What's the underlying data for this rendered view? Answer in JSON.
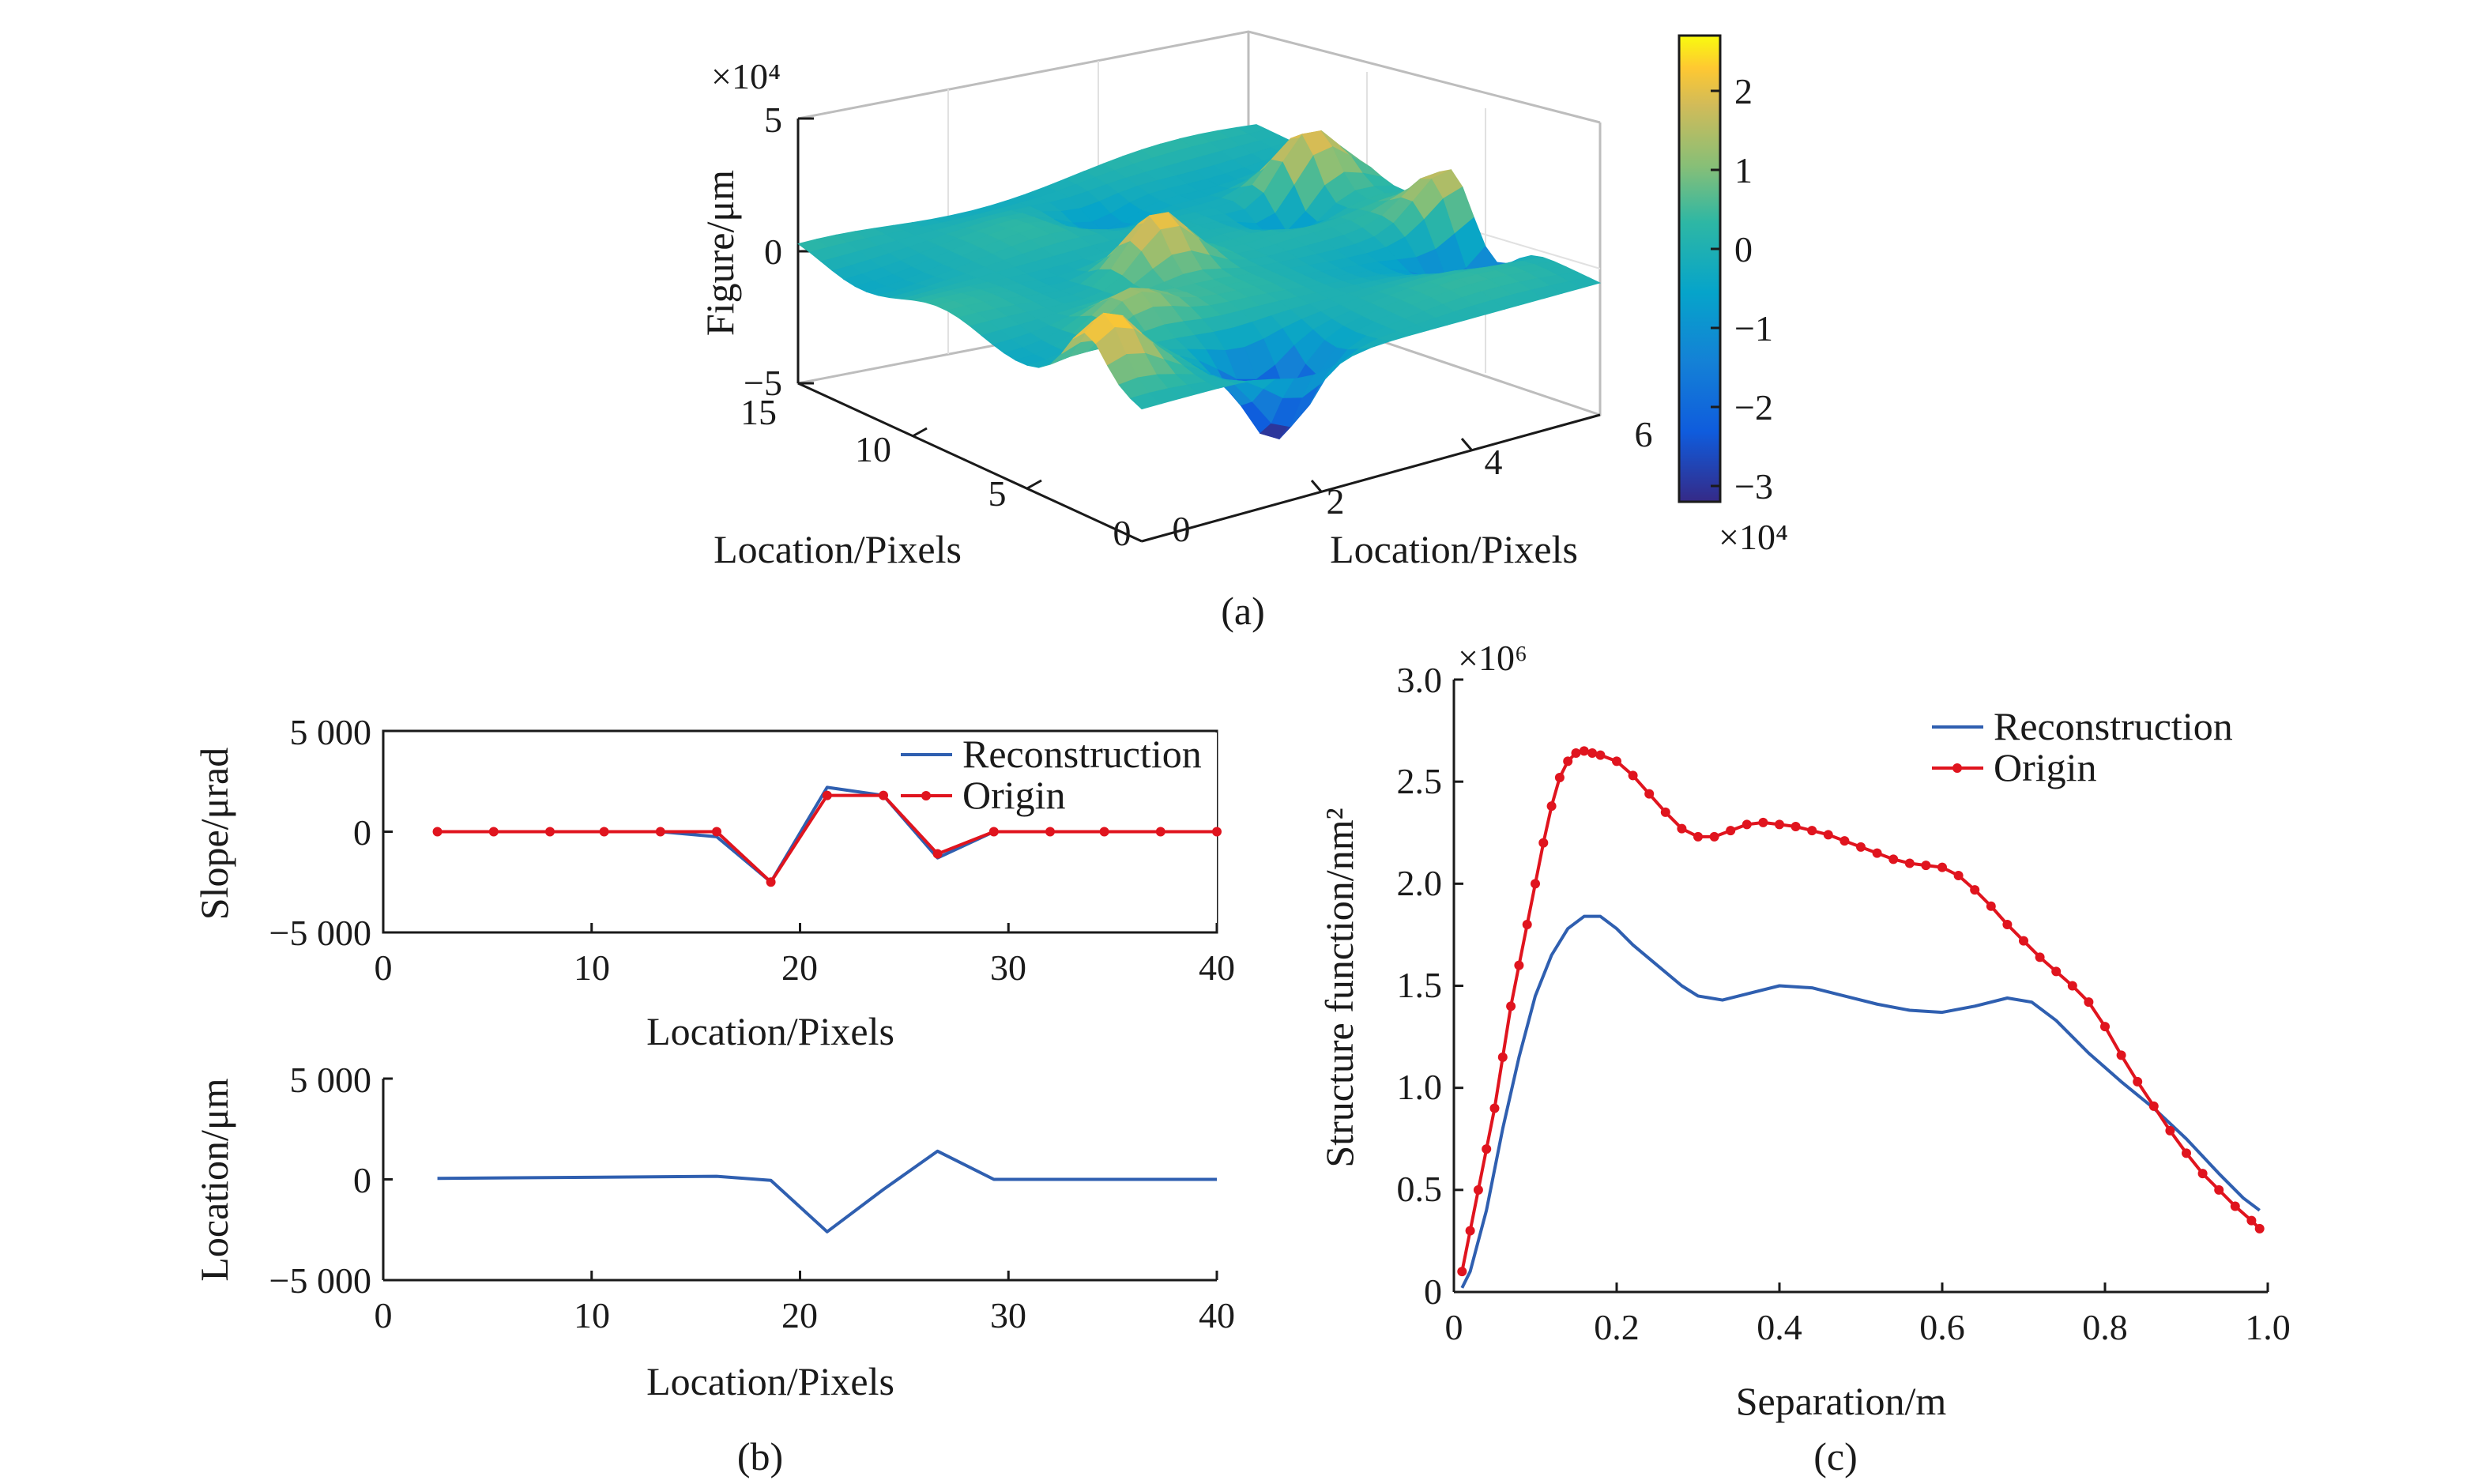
{
  "colors": {
    "reconstruction": "#2f5fb0",
    "origin": "#e0141e",
    "axis": "#1a1a1a",
    "grid": "#d9d9d9"
  },
  "chart_data": [
    {
      "id": "a",
      "caption": "(a)",
      "type": "surface3d",
      "colormap": "parula",
      "xlabel": "Location/Pixels",
      "ylabel": "Location/Pixels",
      "zlabel": "Figure/μm",
      "x_ticks": [
        "0",
        "5",
        "10",
        "15"
      ],
      "y_ticks": [
        "0",
        "2",
        "4",
        "6"
      ],
      "z_ticks": [
        "5",
        "0",
        "−5"
      ],
      "z_exponent": "×10⁴",
      "xlim": [
        0,
        15
      ],
      "ylim": [
        0,
        6
      ],
      "zlim": [
        -5,
        5
      ],
      "colorbar": {
        "ticks": [
          "2",
          "1",
          "0",
          "−1",
          "−2",
          "−3"
        ],
        "range": [
          -3.2,
          2.7
        ],
        "exponent": "×10⁴"
      },
      "peaks": [
        {
          "x": 2.5,
          "y": 0.3,
          "z": 2.2
        },
        {
          "x": 8.0,
          "y": 2.6,
          "z": 2.5
        },
        {
          "x": 10.5,
          "y": 5.3,
          "z": 2.4
        },
        {
          "x": 6.5,
          "y": 5.9,
          "z": 1.8
        },
        {
          "x": 5.2,
          "y": 1.4,
          "z": 1.2
        }
      ],
      "valleys": [
        {
          "x": 1.5,
          "y": 2.2,
          "z": -3.2
        },
        {
          "x": 4.5,
          "y": 5.6,
          "z": -1.8
        },
        {
          "x": 9.5,
          "y": 4.8,
          "z": -1.5
        },
        {
          "x": 12.5,
          "y": 3.2,
          "z": -1.0
        }
      ]
    },
    {
      "id": "b-top",
      "type": "line",
      "xlabel": "Location/Pixels",
      "ylabel": "Slope/μrad",
      "xlim": [
        0,
        40
      ],
      "ylim": [
        -5000,
        5000
      ],
      "x_ticks": [
        "0",
        "10",
        "20",
        "30",
        "40"
      ],
      "y_ticks": [
        "5 000",
        "0",
        "−5 000"
      ],
      "legend": {
        "placement": "top-right"
      },
      "x": [
        2.6,
        5.3,
        8.0,
        10.6,
        13.3,
        16.0,
        18.6,
        21.3,
        24.0,
        26.6,
        29.3,
        32.0,
        34.6,
        37.3,
        40.0
      ],
      "series": [
        {
          "name": "Reconstruction",
          "marker": false,
          "values": [
            0,
            0,
            0,
            0,
            0,
            -250,
            -2500,
            2200,
            1800,
            -1300,
            0,
            0,
            0,
            0,
            0
          ]
        },
        {
          "name": "Origin",
          "marker": true,
          "values": [
            0,
            0,
            0,
            0,
            0,
            0,
            -2500,
            1800,
            1800,
            -1100,
            0,
            0,
            0,
            0,
            0
          ]
        }
      ]
    },
    {
      "id": "b-bottom",
      "caption": "(b)",
      "type": "line",
      "xlabel": "Location/Pixels",
      "ylabel": "Location/μm",
      "xlim": [
        0,
        40
      ],
      "ylim": [
        -5000,
        5000
      ],
      "x_ticks": [
        "0",
        "10",
        "20",
        "30",
        "40"
      ],
      "y_ticks": [
        "5 000",
        "0",
        "−5 000"
      ],
      "x": [
        2.6,
        16.0,
        18.6,
        21.3,
        24.0,
        26.6,
        29.3,
        40.0
      ],
      "series": [
        {
          "name": "Reconstruction",
          "marker": false,
          "values": [
            50,
            150,
            -50,
            -2600,
            -500,
            1400,
            0,
            0
          ]
        }
      ]
    },
    {
      "id": "c",
      "caption": "(c)",
      "type": "line",
      "xlabel": "Separation/m",
      "ylabel": "Structure function/nm²",
      "xlim": [
        0,
        1.0
      ],
      "ylim": [
        0,
        3.0
      ],
      "y_exponent": "×10⁶",
      "x_ticks": [
        "0",
        "0.2",
        "0.4",
        "0.6",
        "0.8",
        "1.0"
      ],
      "y_ticks": [
        "3.0",
        "2.5",
        "2.0",
        "1.5",
        "1.0",
        "0.5",
        "0"
      ],
      "legend": {
        "placement": "top-right"
      },
      "series": [
        {
          "name": "Reconstruction",
          "marker": false,
          "points": [
            [
              0.01,
              0.02
            ],
            [
              0.02,
              0.1
            ],
            [
              0.04,
              0.4
            ],
            [
              0.06,
              0.8
            ],
            [
              0.08,
              1.15
            ],
            [
              0.1,
              1.45
            ],
            [
              0.12,
              1.65
            ],
            [
              0.14,
              1.78
            ],
            [
              0.16,
              1.84
            ],
            [
              0.18,
              1.84
            ],
            [
              0.2,
              1.78
            ],
            [
              0.22,
              1.7
            ],
            [
              0.25,
              1.6
            ],
            [
              0.28,
              1.5
            ],
            [
              0.3,
              1.45
            ],
            [
              0.33,
              1.43
            ],
            [
              0.36,
              1.46
            ],
            [
              0.4,
              1.5
            ],
            [
              0.44,
              1.49
            ],
            [
              0.48,
              1.45
            ],
            [
              0.52,
              1.41
            ],
            [
              0.56,
              1.38
            ],
            [
              0.6,
              1.37
            ],
            [
              0.64,
              1.4
            ],
            [
              0.68,
              1.44
            ],
            [
              0.71,
              1.42
            ],
            [
              0.74,
              1.33
            ],
            [
              0.78,
              1.17
            ],
            [
              0.82,
              1.03
            ],
            [
              0.86,
              0.9
            ],
            [
              0.9,
              0.75
            ],
            [
              0.94,
              0.58
            ],
            [
              0.97,
              0.46
            ],
            [
              0.99,
              0.4
            ]
          ]
        },
        {
          "name": "Origin",
          "marker": true,
          "points": [
            [
              0.01,
              0.1
            ],
            [
              0.02,
              0.3
            ],
            [
              0.03,
              0.5
            ],
            [
              0.04,
              0.7
            ],
            [
              0.05,
              0.9
            ],
            [
              0.06,
              1.15
            ],
            [
              0.07,
              1.4
            ],
            [
              0.08,
              1.6
            ],
            [
              0.09,
              1.8
            ],
            [
              0.1,
              2.0
            ],
            [
              0.11,
              2.2
            ],
            [
              0.12,
              2.38
            ],
            [
              0.13,
              2.52
            ],
            [
              0.14,
              2.6
            ],
            [
              0.15,
              2.64
            ],
            [
              0.16,
              2.65
            ],
            [
              0.17,
              2.64
            ],
            [
              0.18,
              2.63
            ],
            [
              0.2,
              2.6
            ],
            [
              0.22,
              2.53
            ],
            [
              0.24,
              2.44
            ],
            [
              0.26,
              2.35
            ],
            [
              0.28,
              2.27
            ],
            [
              0.3,
              2.23
            ],
            [
              0.32,
              2.23
            ],
            [
              0.34,
              2.26
            ],
            [
              0.36,
              2.29
            ],
            [
              0.38,
              2.3
            ],
            [
              0.4,
              2.29
            ],
            [
              0.42,
              2.28
            ],
            [
              0.44,
              2.26
            ],
            [
              0.46,
              2.24
            ],
            [
              0.48,
              2.21
            ],
            [
              0.5,
              2.18
            ],
            [
              0.52,
              2.15
            ],
            [
              0.54,
              2.12
            ],
            [
              0.56,
              2.1
            ],
            [
              0.58,
              2.09
            ],
            [
              0.6,
              2.08
            ],
            [
              0.62,
              2.04
            ],
            [
              0.64,
              1.97
            ],
            [
              0.66,
              1.89
            ],
            [
              0.68,
              1.8
            ],
            [
              0.7,
              1.72
            ],
            [
              0.72,
              1.64
            ],
            [
              0.74,
              1.57
            ],
            [
              0.76,
              1.5
            ],
            [
              0.78,
              1.42
            ],
            [
              0.8,
              1.3
            ],
            [
              0.82,
              1.16
            ],
            [
              0.84,
              1.03
            ],
            [
              0.86,
              0.91
            ],
            [
              0.88,
              0.79
            ],
            [
              0.9,
              0.68
            ],
            [
              0.92,
              0.58
            ],
            [
              0.94,
              0.5
            ],
            [
              0.96,
              0.42
            ],
            [
              0.98,
              0.35
            ],
            [
              0.99,
              0.31
            ]
          ]
        }
      ]
    }
  ]
}
